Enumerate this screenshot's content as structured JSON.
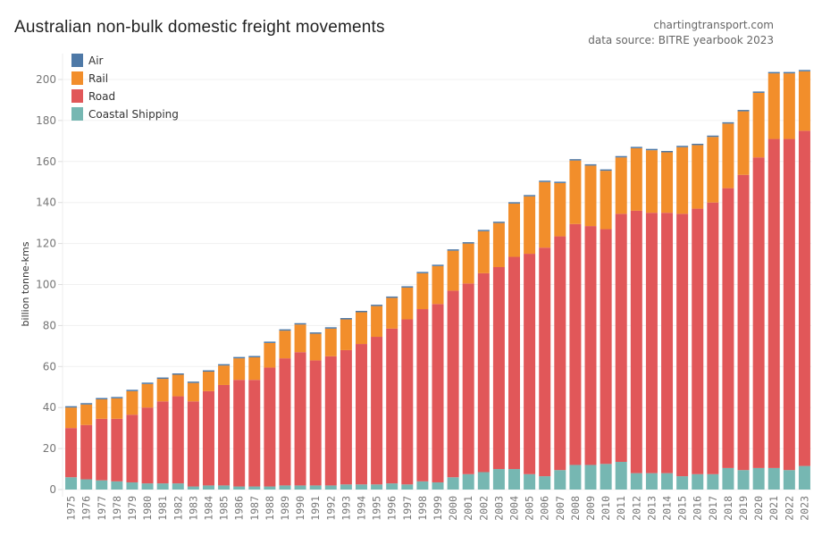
{
  "header": {
    "title": "Australian non-bulk domestic freight movements",
    "source_line1": "chartingtransport.com",
    "source_line2": "data source: BITRE yearbook 2023"
  },
  "chart_data": {
    "type": "bar",
    "stacked": true,
    "title": "Australian non-bulk domestic freight movements",
    "xlabel": "",
    "ylabel": "billion tonne-kms",
    "ylim": [
      0,
      205
    ],
    "yticks": [
      0,
      20,
      40,
      60,
      80,
      100,
      120,
      140,
      160,
      180,
      200
    ],
    "grid": true,
    "legend_position": "top-left",
    "categories": [
      "1975",
      "1976",
      "1977",
      "1978",
      "1979",
      "1980",
      "1981",
      "1982",
      "1983",
      "1984",
      "1985",
      "1986",
      "1987",
      "1988",
      "1989",
      "1990",
      "1991",
      "1992",
      "1993",
      "1994",
      "1995",
      "1996",
      "1997",
      "1998",
      "1999",
      "2000",
      "2001",
      "2002",
      "2003",
      "2004",
      "2005",
      "2006",
      "2007",
      "2008",
      "2009",
      "2010",
      "2011",
      "2012",
      "2013",
      "2014",
      "2015",
      "2016",
      "2017",
      "2018",
      "2019",
      "2020",
      "2021",
      "2022",
      "2023"
    ],
    "series": [
      {
        "name": "Coastal Shipping",
        "color": "#76b7b2",
        "values": [
          6,
          5,
          4.5,
          4,
          3.5,
          3,
          3,
          3,
          1.5,
          2,
          2,
          1.5,
          1.5,
          1.5,
          2,
          2,
          2,
          2,
          2.5,
          2.5,
          2.5,
          3,
          2.5,
          4,
          3.5,
          6,
          7.5,
          8.5,
          10,
          10,
          7.5,
          6.5,
          9.5,
          12,
          12,
          12.5,
          13.5,
          8,
          8,
          8,
          6.5,
          7.5,
          7.5,
          10.5,
          9.5,
          10.5,
          10.5,
          9.5,
          11.5
        ]
      },
      {
        "name": "Road",
        "color": "#e15759",
        "values": [
          24,
          26.5,
          30,
          30.5,
          33,
          37,
          40,
          42.5,
          41.5,
          46,
          49,
          52,
          52,
          58,
          62,
          65,
          61,
          63,
          65.5,
          68.5,
          72,
          75.5,
          80.5,
          84,
          87,
          91,
          93,
          97,
          98.5,
          103.5,
          107.5,
          111.5,
          114,
          117.5,
          116.5,
          114.5,
          121,
          128,
          127,
          127,
          128,
          129.5,
          132.5,
          136.5,
          144,
          151.5,
          160.5,
          161.5,
          163.5
        ]
      },
      {
        "name": "Rail",
        "color": "#f28e2b",
        "values": [
          10,
          10,
          9.5,
          10,
          11.5,
          11.5,
          11,
          10.5,
          9,
          9.5,
          9.5,
          10.5,
          11,
          12,
          13.5,
          13.5,
          13,
          13.5,
          15,
          15.5,
          15,
          15,
          15.5,
          17.5,
          18.5,
          19.5,
          19.5,
          20.5,
          21.5,
          26,
          28,
          32,
          26,
          31,
          29.5,
          28.5,
          27.5,
          30.5,
          30.5,
          29.5,
          32.5,
          31,
          32,
          31.5,
          31,
          31.5,
          32,
          32,
          29
        ]
      },
      {
        "name": "Air",
        "color": "#4e79a7",
        "values": [
          0.3,
          0.3,
          0.3,
          0.3,
          0.3,
          0.3,
          0.3,
          0.3,
          0.3,
          0.3,
          0.3,
          0.3,
          0.3,
          0.3,
          0.3,
          0.3,
          0.3,
          0.3,
          0.3,
          0.3,
          0.3,
          0.3,
          0.3,
          0.3,
          0.3,
          0.3,
          0.3,
          0.3,
          0.3,
          0.3,
          0.3,
          0.3,
          0.3,
          0.3,
          0.3,
          0.3,
          0.3,
          0.3,
          0.3,
          0.3,
          0.3,
          0.3,
          0.3,
          0.3,
          0.3,
          0.3,
          0.3,
          0.3,
          0.3
        ]
      }
    ],
    "legend": [
      "Air",
      "Rail",
      "Road",
      "Coastal Shipping"
    ],
    "legend_colors": [
      "#4e79a7",
      "#f28e2b",
      "#e15759",
      "#76b7b2"
    ]
  }
}
